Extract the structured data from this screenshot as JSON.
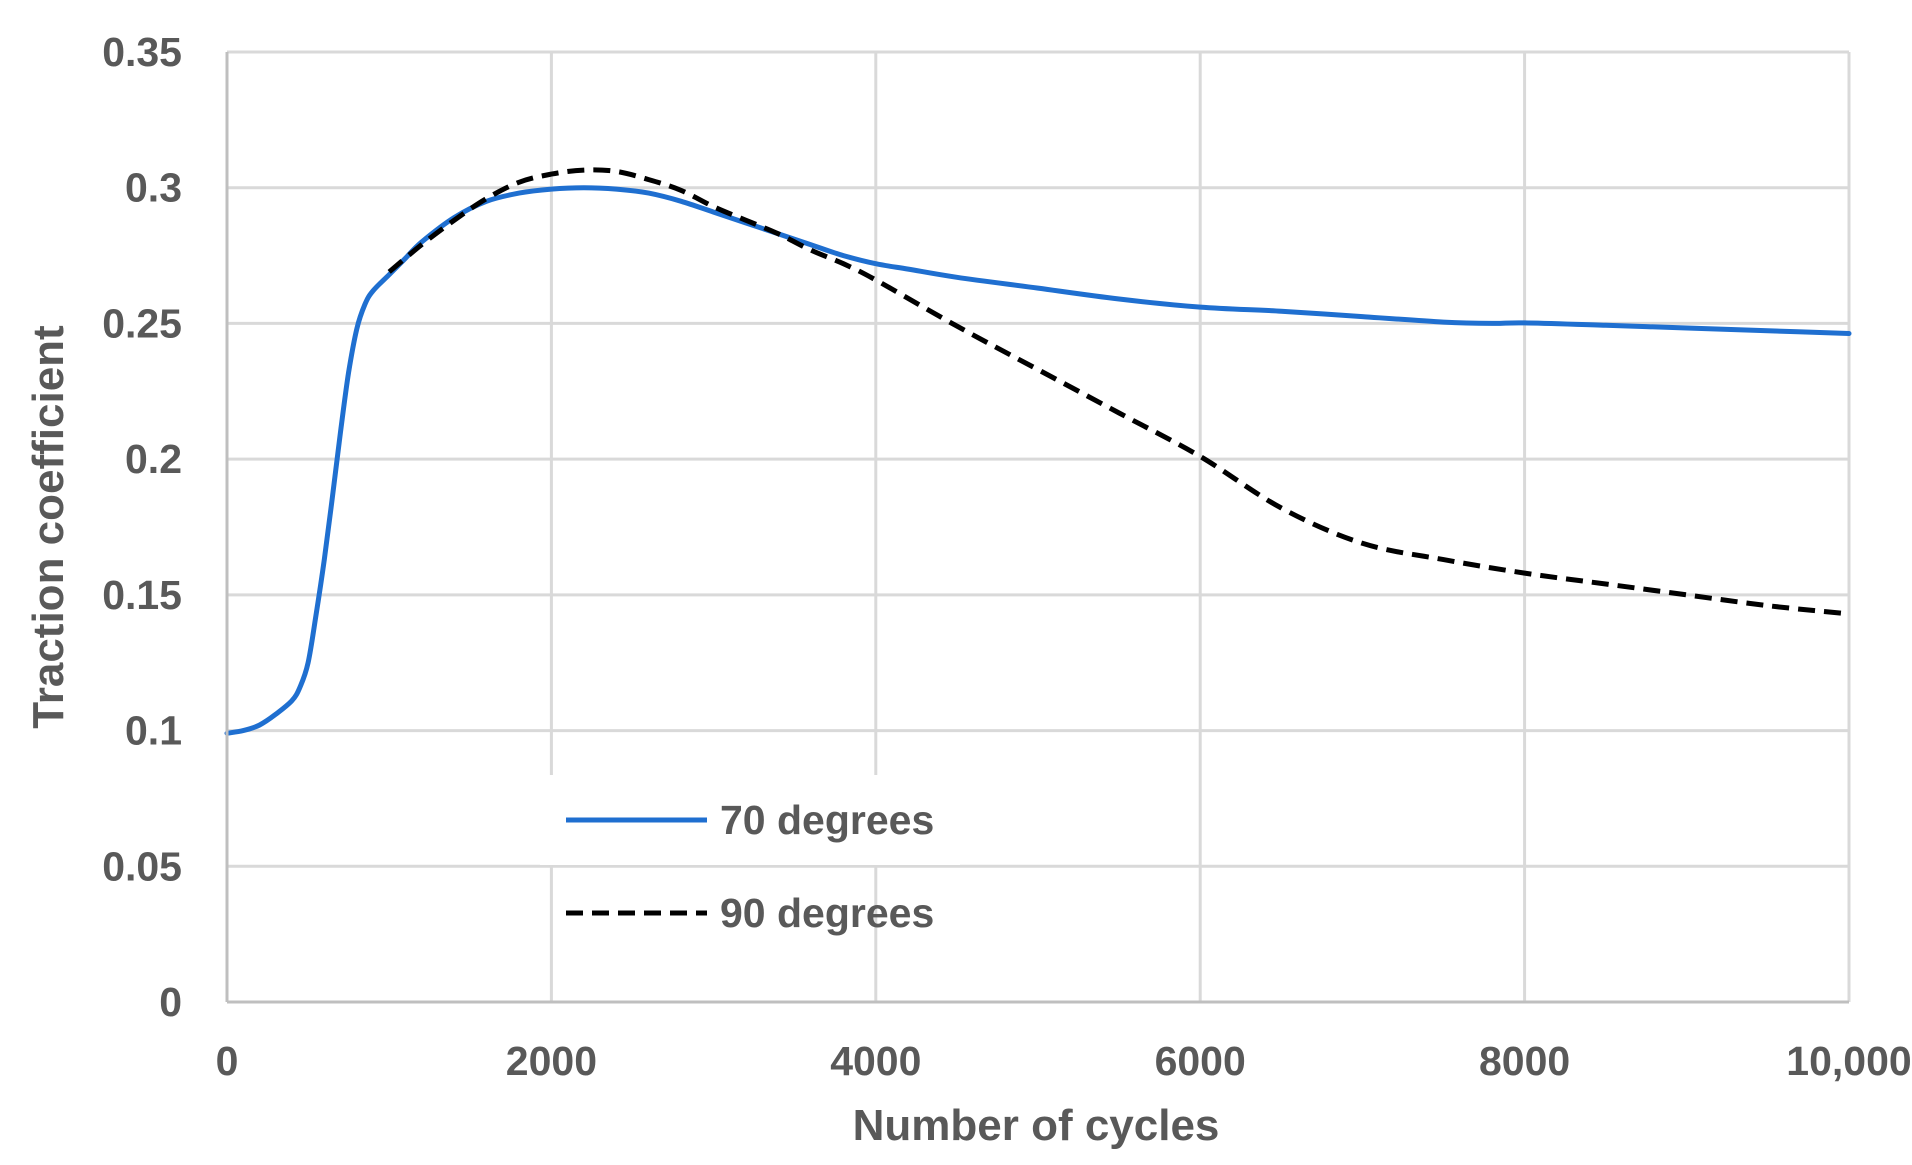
{
  "chart_data": {
    "type": "line",
    "title": "",
    "xlabel": "Number of cycles",
    "ylabel": "Traction coefficient",
    "xlim": [
      0,
      10000
    ],
    "ylim": [
      0,
      0.35
    ],
    "grid": true,
    "legend_position": "bottom-left",
    "x_ticks": [
      "0",
      "2000",
      "4000",
      "6000",
      "8000",
      "10,000"
    ],
    "x_tick_values": [
      0,
      2000,
      4000,
      6000,
      8000,
      10000
    ],
    "y_ticks": [
      "0",
      "0.05",
      "0.1",
      "0.15",
      "0.2",
      "0.25",
      "0.3",
      "0.35"
    ],
    "y_tick_values": [
      0,
      0.05,
      0.1,
      0.15,
      0.2,
      0.25,
      0.3,
      0.35
    ],
    "series": [
      {
        "name": "70 degrees",
        "color": "#1f6fd0",
        "style": "solid",
        "x": [
          0,
          100,
          200,
          300,
          400,
          450,
          500,
          550,
          600,
          650,
          700,
          750,
          800,
          850,
          900,
          1000,
          1100,
          1200,
          1400,
          1600,
          1800,
          2000,
          2200,
          2400,
          2600,
          2800,
          3000,
          3200,
          3400,
          3600,
          3800,
          4000,
          4200,
          4500,
          5000,
          5500,
          6000,
          6500,
          7000,
          7500,
          7800,
          8000,
          8500,
          9000,
          9500,
          10000
        ],
        "y": [
          0.099,
          0.1,
          0.102,
          0.106,
          0.111,
          0.116,
          0.125,
          0.143,
          0.163,
          0.186,
          0.21,
          0.232,
          0.248,
          0.257,
          0.262,
          0.268,
          0.274,
          0.28,
          0.289,
          0.295,
          0.298,
          0.2995,
          0.3,
          0.2995,
          0.298,
          0.295,
          0.291,
          0.287,
          0.283,
          0.279,
          0.275,
          0.272,
          0.27,
          0.267,
          0.263,
          0.259,
          0.256,
          0.2545,
          0.2525,
          0.2505,
          0.25,
          0.2502,
          0.2493,
          0.2483,
          0.2473,
          0.2463
        ]
      },
      {
        "name": "90 degrees",
        "color": "#000000",
        "style": "dashed",
        "x": [
          1000,
          1200,
          1400,
          1600,
          1800,
          2000,
          2200,
          2400,
          2600,
          2800,
          3000,
          3200,
          3400,
          3600,
          3800,
          4000,
          4500,
          5000,
          5500,
          6000,
          6500,
          7000,
          7500,
          8000,
          8500,
          9000,
          9500,
          10000
        ],
        "y": [
          0.269,
          0.279,
          0.288,
          0.296,
          0.302,
          0.305,
          0.3065,
          0.306,
          0.303,
          0.299,
          0.293,
          0.288,
          0.283,
          0.277,
          0.272,
          0.266,
          0.249,
          0.233,
          0.217,
          0.201,
          0.182,
          0.169,
          0.163,
          0.158,
          0.154,
          0.15,
          0.146,
          0.143
        ]
      }
    ]
  }
}
